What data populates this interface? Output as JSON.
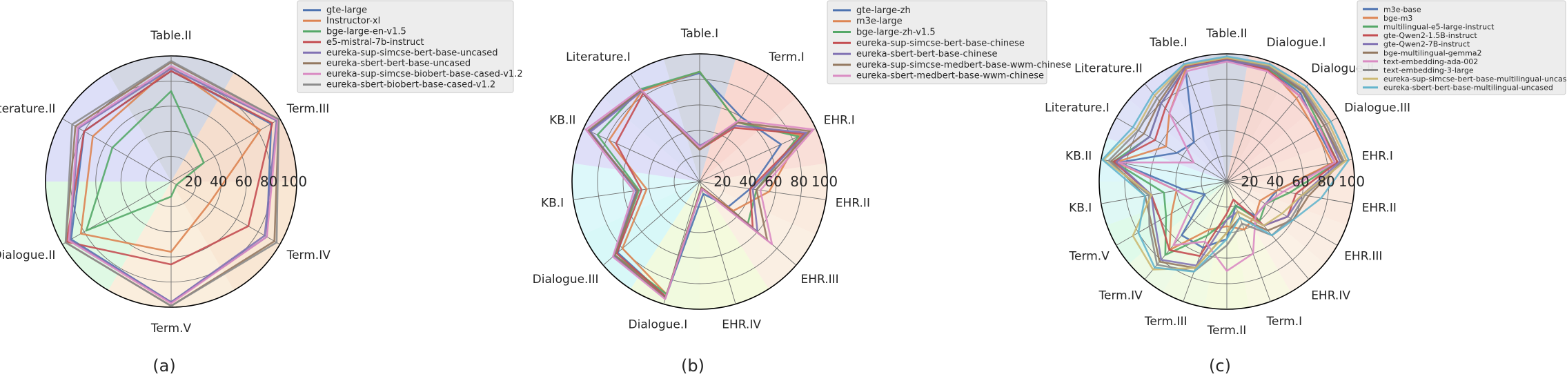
{
  "figure": {
    "panels": [
      "(a)",
      "(b)",
      "(c)"
    ]
  },
  "chart_data": [
    {
      "type": "radar",
      "panel_label": "(a)",
      "axes": [
        "Table.II",
        "Term.III",
        "Term.IV",
        "Term.V",
        "Dialogue.II",
        "Literature.II"
      ],
      "rlim": [
        0,
        100
      ],
      "rticks": [
        "20",
        "40",
        "60",
        "80",
        "100"
      ],
      "legend_position": "top-right",
      "sector_colors": [
        "#9ea6c2",
        "#e8b592",
        "#f2c9a0",
        "#f5d9b3",
        "#b8f2c4",
        "#b3b8f0"
      ],
      "series": [
        {
          "name": "gte-large",
          "color": "#4c72b0",
          "values": [
            88,
            92,
            88,
            96,
            92,
            80
          ]
        },
        {
          "name": "Instructor-xl",
          "color": "#dd8452",
          "values": [
            91,
            82,
            35,
            56,
            83,
            72
          ]
        },
        {
          "name": "bge-large-en-v1.5",
          "color": "#55a868",
          "values": [
            72,
            30,
            5,
            12,
            78,
            54
          ]
        },
        {
          "name": "e5-mistral-7b-instruct",
          "color": "#c44e52",
          "values": [
            88,
            93,
            71,
            66,
            96,
            80
          ]
        },
        {
          "name": "eureka-sup-simcse-bert-base-uncased",
          "color": "#8172b3",
          "values": [
            90,
            97,
            86,
            96,
            93,
            85
          ]
        },
        {
          "name": "eureka-sbert-bert-base-uncased",
          "color": "#937860",
          "values": [
            95,
            99,
            95,
            99,
            97,
            88
          ]
        },
        {
          "name": "eureka-sup-simcse-biobert-base-cased-v1.2",
          "color": "#da8bc3",
          "values": [
            92,
            98,
            88,
            97,
            94,
            86
          ]
        },
        {
          "name": "eureka-sbert-biobert-base-cased-v1.2",
          "color": "#8c8c8c",
          "values": [
            96,
            99,
            97,
            99,
            97,
            91
          ]
        }
      ]
    },
    {
      "type": "radar",
      "panel_label": "(b)",
      "axes": [
        "Table.I",
        "Term.I",
        "EHR.I",
        "EHR.II",
        "EHR.III",
        "EHR.IV",
        "Dialogue.I",
        "Dialogue.III",
        "KB.I",
        "KB.II",
        "Literature.I"
      ],
      "rlim": [
        0,
        100
      ],
      "rticks": [
        "20",
        "40",
        "60",
        "80",
        "100"
      ],
      "legend_position": "top-right",
      "sector_colors": [
        "#9ea6c2",
        "#f2a99a",
        "#f2b8a8",
        "#f5d2b8",
        "#f5dcc0",
        "#e6f5b3",
        "#dff5b8",
        "#a8f0f0",
        "#b3f0f5",
        "#b8b8f0",
        "#b0b5ec"
      ],
      "series": [
        {
          "name": "gte-large-zh",
          "color": "#4c72b0",
          "values": [
            85,
            60,
            70,
            40,
            30,
            10,
            94,
            85,
            50,
            95,
            85
          ]
        },
        {
          "name": "m3e-large",
          "color": "#dd8452",
          "values": [
            86,
            55,
            87,
            55,
            35,
            5,
            92,
            80,
            42,
            78,
            84
          ]
        },
        {
          "name": "bge-large-zh-v1.5",
          "color": "#55a868",
          "values": [
            86,
            55,
            85,
            45,
            50,
            5,
            92,
            88,
            48,
            88,
            86
          ]
        },
        {
          "name": "eureka-sup-simcse-bert-base-chinese",
          "color": "#c44e52",
          "values": [
            25,
            50,
            90,
            40,
            55,
            5,
            94,
            86,
            46,
            72,
            82
          ]
        },
        {
          "name": "eureka-sbert-bert-base-chinese",
          "color": "#8172b3",
          "values": [
            28,
            52,
            92,
            42,
            60,
            6,
            95,
            89,
            50,
            94,
            84
          ]
        },
        {
          "name": "eureka-sup-simcse-medbert-base-wwm-chinese",
          "color": "#937860",
          "values": [
            25,
            55,
            95,
            45,
            70,
            5,
            95,
            88,
            49,
            96,
            85
          ]
        },
        {
          "name": "eureka-sbert-medbert-base-wwm-chinese",
          "color": "#da8bc3",
          "values": [
            27,
            57,
            98,
            48,
            75,
            6,
            96,
            90,
            52,
            98,
            86
          ]
        }
      ]
    },
    {
      "type": "radar",
      "panel_label": "(c)",
      "axes": [
        "Table.II",
        "Dialogue.I",
        "Dialogue.II",
        "Dialogue.III",
        "EHR.I",
        "EHR.II",
        "EHR.III",
        "EHR.IV",
        "Term.I",
        "Term.II",
        "Term.III",
        "Term.IV",
        "Term.V",
        "KB.I",
        "KB.II",
        "Literature.I",
        "Literature.II",
        "Table.I"
      ],
      "rlim": [
        0,
        100
      ],
      "rticks": [
        "20",
        "40",
        "60",
        "80",
        "100"
      ],
      "legend_position": "top-right",
      "sector_colors": [
        "#9ea6c2",
        "#e8a89c",
        "#f0b0a5",
        "#f2b8aa",
        "#f5c4b0",
        "#f5cfb8",
        "#f5d8c0",
        "#f7e0c8",
        "#f0f0c0",
        "#e8f5b8",
        "#e0f5c0",
        "#d8f5c8",
        "#b8f5d0",
        "#b8f0e8",
        "#b3eef5",
        "#b8c0f0",
        "#b5b8ee",
        "#aab0e8"
      ],
      "series": [
        {
          "name": "m3e-base",
          "color": "#4c72b0",
          "values": [
            95,
            94,
            90,
            82,
            86,
            40,
            35,
            35,
            20,
            45,
            55,
            55,
            20,
            35,
            86,
            45,
            40,
            95
          ]
        },
        {
          "name": "bge-m3",
          "color": "#dd8452",
          "values": [
            96,
            95,
            85,
            80,
            84,
            40,
            30,
            35,
            40,
            35,
            40,
            70,
            50,
            40,
            88,
            55,
            70,
            94
          ]
        },
        {
          "name": "multilingual-e5-large-instruct",
          "color": "#55a868",
          "values": [
            96,
            94,
            92,
            85,
            88,
            50,
            35,
            40,
            20,
            30,
            45,
            75,
            55,
            50,
            90,
            70,
            80,
            95
          ]
        },
        {
          "name": "gte-Qwen2-1.5B-instruct",
          "color": "#c44e52",
          "values": [
            96,
            93,
            88,
            84,
            88,
            55,
            55,
            45,
            15,
            25,
            62,
            70,
            60,
            60,
            90,
            65,
            75,
            96
          ]
        },
        {
          "name": "gte-Qwen2-7B-instruct",
          "color": "#8172b3",
          "values": [
            95,
            95,
            93,
            88,
            90,
            60,
            55,
            45,
            25,
            30,
            70,
            80,
            65,
            60,
            88,
            70,
            80,
            95
          ]
        },
        {
          "name": "bge-multilingual-gemma2",
          "color": "#937860",
          "values": [
            97,
            96,
            92,
            88,
            92,
            65,
            60,
            50,
            30,
            40,
            72,
            82,
            68,
            65,
            92,
            75,
            82,
            97
          ]
        },
        {
          "name": "text-embedding-ada-002",
          "color": "#da8bc3",
          "values": [
            94,
            92,
            88,
            84,
            86,
            45,
            35,
            35,
            60,
            70,
            50,
            65,
            30,
            40,
            86,
            30,
            70,
            92
          ]
        },
        {
          "name": "text-embedding-3-large",
          "color": "#8c8c8c",
          "values": [
            97,
            96,
            94,
            90,
            93,
            62,
            58,
            55,
            35,
            50,
            75,
            85,
            70,
            62,
            94,
            80,
            85,
            97
          ]
        },
        {
          "name": "eureka-sup-simcse-bert-base-multilingual-uncased",
          "color": "#ccb974",
          "values": [
            97,
            97,
            95,
            92,
            95,
            60,
            50,
            45,
            25,
            40,
            72,
            90,
            85,
            60,
            98,
            82,
            88,
            97
          ]
        },
        {
          "name": "eureka-sbert-bert-base-multilingual-uncased",
          "color": "#64b5cd",
          "values": [
            98,
            98,
            97,
            94,
            97,
            75,
            60,
            55,
            30,
            45,
            75,
            88,
            80,
            65,
            99,
            85,
            90,
            98
          ]
        }
      ]
    }
  ]
}
